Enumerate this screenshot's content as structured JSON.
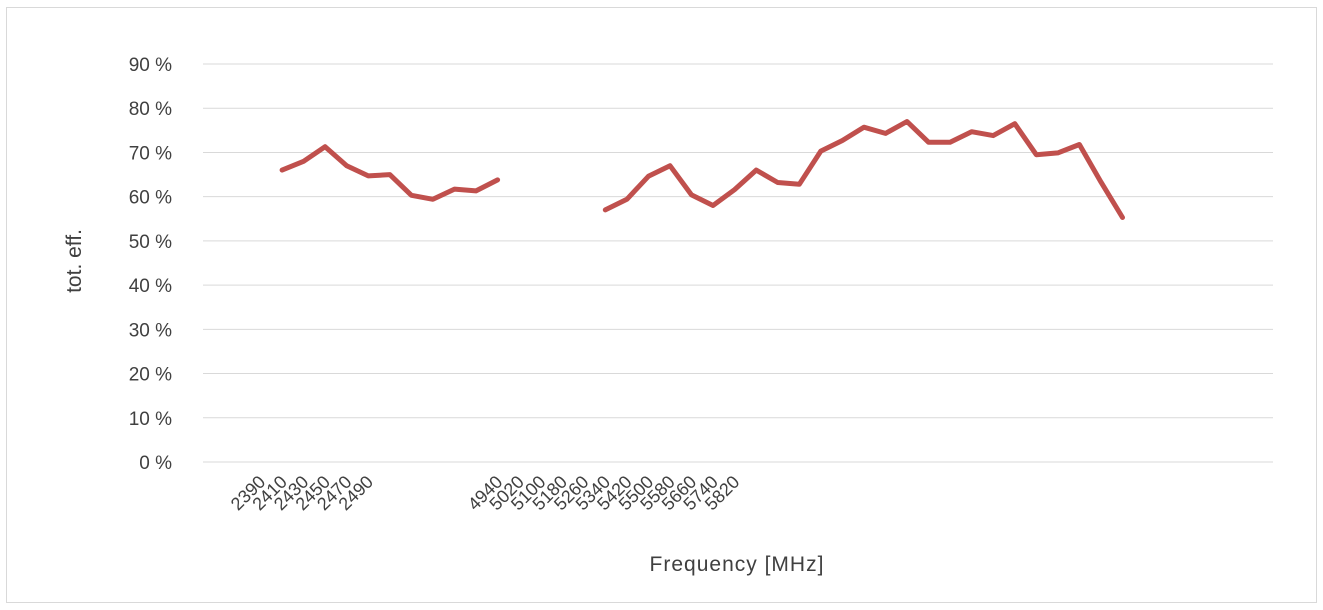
{
  "chart_data": {
    "type": "line",
    "title": "",
    "xlabel": "Frequency [MHz]",
    "ylabel": "tot. eff.",
    "ylim": [
      0,
      90
    ],
    "y_tick_labels": [
      "0 %",
      "10 %",
      "20 %",
      "30 %",
      "40 %",
      "50 %",
      "60 %",
      "70 %",
      "80 %",
      "90 %"
    ],
    "grid": true,
    "legend": "none",
    "x_tick_labels": [
      "2390",
      "2410",
      "2430",
      "2450",
      "2470",
      "2490",
      "",
      "",
      "",
      "",
      "",
      "4940",
      "5020",
      "5100",
      "5180",
      "5260",
      "5340",
      "5420",
      "5500",
      "5580",
      "5660",
      "5740",
      "5820"
    ],
    "series": [
      {
        "color": "#c0504d",
        "segments": [
          [
            [
              1,
              66.0
            ],
            [
              2,
              68.0
            ],
            [
              3,
              71.3
            ],
            [
              4,
              67.0
            ],
            [
              5,
              64.7
            ],
            [
              6,
              65.0
            ],
            [
              7,
              60.3
            ],
            [
              8,
              59.4
            ],
            [
              9,
              61.7
            ],
            [
              10,
              61.3
            ],
            [
              11,
              63.8
            ]
          ],
          [
            [
              16,
              57.0
            ],
            [
              17,
              59.4
            ],
            [
              18,
              64.6
            ],
            [
              19,
              67.0
            ],
            [
              20,
              60.4
            ],
            [
              21,
              58.0
            ],
            [
              22,
              61.6
            ],
            [
              23,
              66.0
            ],
            [
              24,
              63.2
            ],
            [
              25,
              62.8
            ],
            [
              26,
              70.3
            ],
            [
              27,
              72.7
            ],
            [
              28,
              75.7
            ],
            [
              29,
              74.3
            ],
            [
              30,
              77.0
            ],
            [
              31,
              72.3
            ],
            [
              32,
              72.3
            ],
            [
              33,
              74.7
            ],
            [
              34,
              73.8
            ],
            [
              35,
              76.5
            ],
            [
              36,
              69.5
            ],
            [
              37,
              69.9
            ],
            [
              38,
              71.8
            ],
            [
              39,
              63.3
            ],
            [
              40,
              55.3
            ]
          ]
        ]
      }
    ]
  }
}
